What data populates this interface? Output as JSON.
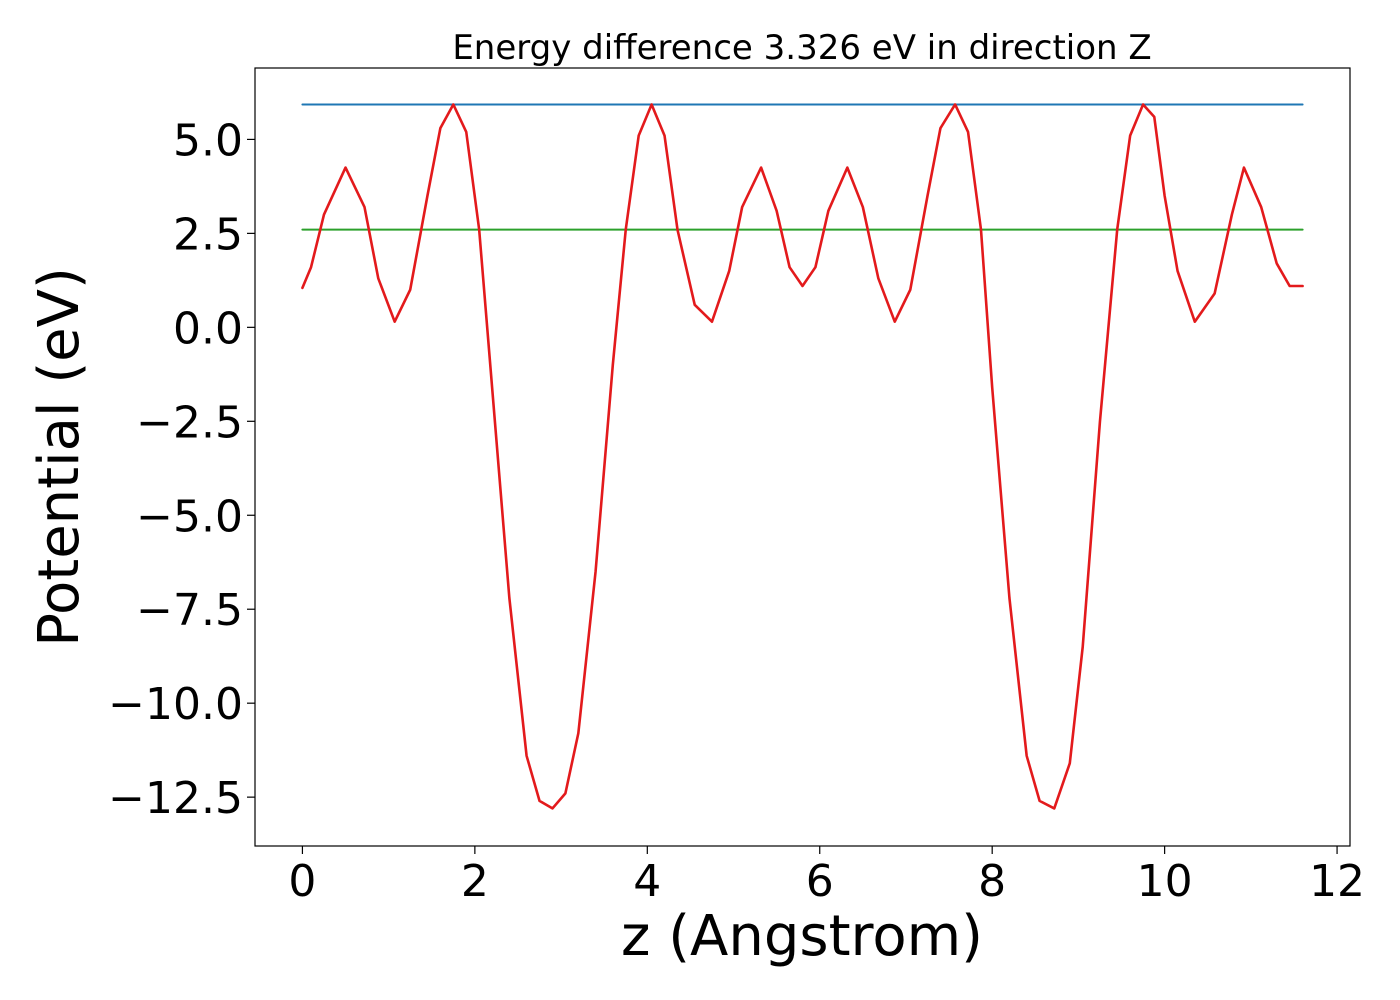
{
  "chart_data": {
    "type": "line",
    "title": "Energy difference 3.326 eV in direction Z",
    "xlabel": "z (Angstrom)",
    "ylabel": "Potential (eV)",
    "xlim": [
      -0.55,
      12.15
    ],
    "ylim": [
      -13.8,
      6.9
    ],
    "xticks": [
      0,
      2,
      4,
      6,
      8,
      10,
      12
    ],
    "xtick_labels": [
      "0",
      "2",
      "4",
      "6",
      "8",
      "10",
      "12"
    ],
    "yticks": [
      -12.5,
      -10.0,
      -7.5,
      -5.0,
      -2.5,
      0.0,
      2.5,
      5.0
    ],
    "ytick_labels": [
      "−12.5",
      "−10.0",
      "−7.5",
      "−5.0",
      "−2.5",
      "0.0",
      "2.5",
      "5.0"
    ],
    "grid": false,
    "series": [
      {
        "color": "#1f77b4",
        "x": [
          0.0,
          11.6
        ],
        "y": [
          5.93,
          5.93
        ]
      },
      {
        "color": "#2ca02c",
        "x": [
          0.0,
          11.6
        ],
        "y": [
          2.6,
          2.6
        ]
      },
      {
        "color": "#e31a1c",
        "x": [
          0.0,
          0.1,
          0.25,
          0.5,
          0.72,
          0.88,
          1.07,
          1.25,
          1.45,
          1.6,
          1.75,
          1.9,
          2.05,
          2.2,
          2.4,
          2.6,
          2.75,
          2.9,
          3.05,
          3.2,
          3.4,
          3.6,
          3.75,
          3.9,
          4.05,
          4.2,
          4.35,
          4.55,
          4.75,
          4.95,
          5.1,
          5.32,
          5.5,
          5.65,
          5.8,
          5.95,
          6.1,
          6.32,
          6.5,
          6.68,
          6.87,
          7.05,
          7.25,
          7.4,
          7.57,
          7.72,
          7.87,
          8.0,
          8.2,
          8.4,
          8.55,
          8.72,
          8.9,
          9.05,
          9.25,
          9.45,
          9.6,
          9.75,
          9.88,
          10.0,
          10.15,
          10.35,
          10.58,
          10.78,
          10.92,
          11.12,
          11.3,
          11.45,
          11.6
        ],
        "y": [
          1.05,
          1.6,
          3.0,
          4.25,
          3.2,
          1.3,
          0.15,
          1.0,
          3.5,
          5.3,
          5.93,
          5.2,
          2.6,
          -1.6,
          -7.2,
          -11.4,
          -12.6,
          -12.8,
          -12.4,
          -10.8,
          -6.5,
          -1.0,
          2.6,
          5.1,
          5.93,
          5.1,
          2.6,
          0.6,
          0.15,
          1.5,
          3.2,
          4.25,
          3.1,
          1.6,
          1.1,
          1.6,
          3.1,
          4.25,
          3.2,
          1.3,
          0.15,
          1.0,
          3.5,
          5.3,
          5.93,
          5.2,
          2.6,
          -1.6,
          -7.2,
          -11.4,
          -12.6,
          -12.8,
          -11.6,
          -8.5,
          -2.5,
          2.6,
          5.1,
          5.93,
          5.6,
          3.5,
          1.5,
          0.15,
          0.9,
          3.0,
          4.25,
          3.2,
          1.7,
          1.1,
          1.1
        ]
      }
    ]
  }
}
